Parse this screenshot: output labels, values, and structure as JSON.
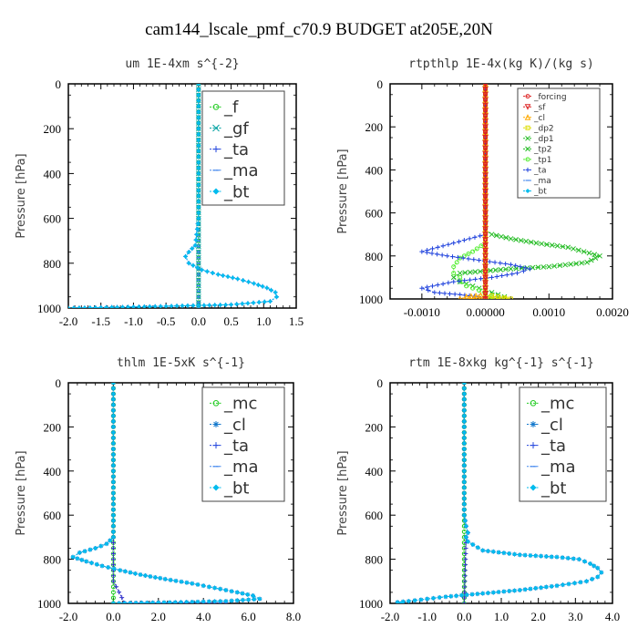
{
  "figure_title": "cam144_lscale_pmf_c70.9  BUDGET at205E,20N",
  "chart_data": [
    {
      "type": "line",
      "title": "um  1E-4xm s^{-2}",
      "ylabel": "Pressure [hPa]",
      "xlim": [
        -2.0,
        1.5
      ],
      "ylim": [
        1000,
        0
      ],
      "xticks": [
        -2.0,
        -1.5,
        -1.0,
        -0.5,
        0.0,
        0.5,
        1.0,
        1.5
      ],
      "xtick_labels": [
        "-2.0",
        "-1.5",
        "-1.0",
        "-0.5",
        "0.0",
        "0.5",
        "1.0",
        "1.5"
      ],
      "yticks": [
        0,
        200,
        400,
        600,
        800,
        1000
      ],
      "ytick_labels": [
        "0",
        "200",
        "400",
        "600",
        "800",
        "1000"
      ],
      "legend": [
        "_f",
        "_gf",
        "_ta",
        "_ma",
        "_bt"
      ],
      "series": [
        {
          "name": "_f",
          "color": "#22cc22",
          "marker": "circle",
          "x": [
            0,
            0,
            0,
            0,
            0,
            0,
            0,
            0,
            0,
            0,
            0
          ],
          "y": [
            0,
            100,
            200,
            300,
            400,
            500,
            600,
            700,
            800,
            900,
            1000
          ]
        },
        {
          "name": "_gf",
          "color": "#00a0a0",
          "marker": "x",
          "x": [
            0,
            0,
            0,
            0,
            0,
            0,
            0,
            0,
            0,
            0,
            0
          ],
          "y": [
            0,
            100,
            200,
            300,
            400,
            500,
            600,
            700,
            800,
            900,
            1000
          ]
        },
        {
          "name": "_ta",
          "color": "#2244dd",
          "marker": "plus",
          "x": [
            0,
            0,
            0,
            0,
            0,
            0,
            0,
            -0.05,
            -0.15,
            -0.2,
            -0.15,
            0.05,
            0.3,
            0.6,
            0.85,
            1.05,
            1.18,
            1.2,
            1.1,
            0.5,
            -1.0,
            -2.0
          ],
          "y": [
            0,
            100,
            200,
            300,
            400,
            500,
            600,
            720,
            750,
            770,
            800,
            830,
            850,
            870,
            890,
            910,
            930,
            950,
            970,
            985,
            995,
            1000
          ]
        },
        {
          "name": "_ma",
          "color": "#4488ee",
          "marker": "dash",
          "x": [
            0,
            0,
            0,
            0,
            0,
            0,
            0,
            0,
            0,
            0,
            0
          ],
          "y": [
            0,
            100,
            200,
            300,
            400,
            500,
            600,
            700,
            800,
            900,
            1000
          ]
        },
        {
          "name": "_bt",
          "color": "#00bbee",
          "marker": "diamond",
          "x": [
            0,
            0,
            0,
            0,
            0,
            0,
            0,
            -0.05,
            -0.15,
            -0.2,
            -0.15,
            0.05,
            0.3,
            0.6,
            0.85,
            1.05,
            1.18,
            1.2,
            1.1,
            0.5,
            -1.0,
            -2.0
          ],
          "y": [
            0,
            100,
            200,
            300,
            400,
            500,
            600,
            720,
            750,
            770,
            800,
            830,
            850,
            870,
            890,
            910,
            930,
            950,
            970,
            985,
            995,
            1000
          ]
        }
      ]
    },
    {
      "type": "line",
      "title": "rtpthlp  1E-4x(kg K)/(kg s)",
      "ylabel": "Pressure [hPa]",
      "xlim": [
        -0.0015,
        0.002
      ],
      "ylim": [
        1000,
        0
      ],
      "xticks": [
        -0.001,
        0.0,
        0.001,
        0.002
      ],
      "xtick_labels": [
        "-0.0010",
        "0.00000",
        "0.0010",
        "0.0020"
      ],
      "yticks": [
        0,
        200,
        400,
        600,
        800,
        1000
      ],
      "ytick_labels": [
        "0",
        "200",
        "400",
        "600",
        "800",
        "1000"
      ],
      "legend": [
        "_forcing",
        "_sf",
        "_cl",
        "_dp2",
        "_dp1",
        "_tp2",
        "_tp1",
        "_ta",
        "_ma",
        "_bt"
      ],
      "series": [
        {
          "name": "_tp2",
          "color": "#22bb22",
          "marker": "x",
          "x": [
            0,
            0,
            0,
            0.0001,
            0.0004,
            0.0008,
            0.0013,
            0.0018,
            0.0016,
            0.001,
            0.0004,
            0.0,
            -0.0004,
            -0.0005,
            -0.0004,
            -0.0002,
            0.0,
            0.0002,
            0.0003,
            0.0002,
            0.0
          ],
          "y": [
            0,
            300,
            680,
            700,
            720,
            740,
            760,
            800,
            830,
            850,
            860,
            870,
            880,
            900,
            920,
            940,
            960,
            980,
            990,
            995,
            1000
          ]
        },
        {
          "name": "_tp1",
          "color": "#55ee33",
          "marker": "circle",
          "x": [
            0,
            0,
            0,
            -0.0002,
            -0.0004,
            -0.0005,
            -0.0005,
            -0.0004,
            -0.0004,
            -0.0003,
            -0.0001,
            0.0,
            0.0001,
            0.0
          ],
          "y": [
            0,
            300,
            740,
            780,
            810,
            850,
            880,
            900,
            920,
            940,
            960,
            980,
            990,
            1000
          ]
        },
        {
          "name": "_ta",
          "color": "#2244dd",
          "marker": "plus",
          "x": [
            0,
            0,
            0,
            -0.0005,
            -0.001,
            -0.0006,
            -0.0001,
            0.0004,
            0.0007,
            0.0005,
            0.0001,
            -0.0005,
            -0.001,
            -0.0008,
            -0.0004,
            -0.0001,
            0.0
          ],
          "y": [
            0,
            300,
            700,
            740,
            780,
            800,
            820,
            840,
            860,
            880,
            900,
            920,
            950,
            970,
            980,
            990,
            1000
          ]
        },
        {
          "name": "_cl",
          "color": "#ffaa00",
          "marker": "triangle",
          "x": [
            0,
            0,
            0,
            -0.0003,
            -0.0004,
            0.0
          ],
          "y": [
            0,
            500,
            980,
            990,
            1000,
            1000
          ]
        },
        {
          "name": "_dp2",
          "color": "#dddd00",
          "marker": "square",
          "x": [
            0,
            0,
            0,
            0.0002,
            0.0004,
            0.0
          ],
          "y": [
            0,
            500,
            980,
            990,
            1000,
            1000
          ]
        },
        {
          "name": "_forcing",
          "color": "#dd2222",
          "marker": "circle",
          "x": [
            0,
            0,
            0,
            0,
            0,
            0,
            0,
            0,
            0,
            0,
            0
          ],
          "y": [
            0,
            100,
            200,
            300,
            400,
            500,
            600,
            700,
            800,
            900,
            1000
          ]
        },
        {
          "name": "_sf",
          "color": "#dd2222",
          "marker": "triangle-down",
          "x": [
            0,
            0,
            0,
            0,
            0,
            0,
            0,
            0,
            0,
            0,
            0
          ],
          "y": [
            0,
            100,
            200,
            300,
            400,
            500,
            600,
            700,
            800,
            900,
            1000
          ]
        }
      ]
    },
    {
      "type": "line",
      "title": "thlm  1E-5xK s^{-1}",
      "ylabel": "Pressure [hPa]",
      "xlim": [
        -2.0,
        8.0
      ],
      "ylim": [
        1000,
        0
      ],
      "xticks": [
        -2.0,
        0.0,
        2.0,
        4.0,
        6.0,
        8.0
      ],
      "xtick_labels": [
        "-2.0",
        "0.0",
        "2.0",
        "4.0",
        "6.0",
        "8.0"
      ],
      "yticks": [
        0,
        200,
        400,
        600,
        800,
        1000
      ],
      "ytick_labels": [
        "0",
        "200",
        "400",
        "600",
        "800",
        "1000"
      ],
      "legend": [
        "_mc",
        "_cl",
        "_ta",
        "_ma",
        "_bt"
      ],
      "series": [
        {
          "name": "_mc",
          "color": "#22cc22",
          "marker": "circle",
          "x": [
            0,
            0,
            0,
            0,
            0,
            0,
            0,
            0,
            0,
            0,
            0
          ],
          "y": [
            0,
            100,
            200,
            300,
            400,
            500,
            600,
            700,
            800,
            900,
            1000
          ]
        },
        {
          "name": "_cl",
          "color": "#1177cc",
          "marker": "star",
          "x": [
            0,
            0,
            0,
            0,
            0,
            -0.3,
            -0.8,
            -1.5,
            -1.8,
            -1.2,
            -0.5,
            0.3,
            1.2,
            2.3,
            3.5,
            4.5,
            5.5,
            6.2,
            6.5,
            5.0,
            3.0,
            1.0,
            0.0
          ],
          "y": [
            0,
            200,
            400,
            600,
            700,
            730,
            750,
            770,
            790,
            810,
            830,
            850,
            870,
            890,
            910,
            930,
            950,
            965,
            980,
            990,
            995,
            998,
            1000
          ]
        },
        {
          "name": "_ta",
          "color": "#3333cc",
          "marker": "plus",
          "x": [
            0,
            0,
            0,
            0,
            0,
            0.5,
            1.0,
            2.0,
            3.0,
            4.0,
            5.0
          ],
          "y": [
            0,
            200,
            400,
            600,
            900,
            998,
            999,
            1000,
            1000,
            1000,
            1000
          ]
        },
        {
          "name": "_bt",
          "color": "#00bbee",
          "marker": "diamond",
          "x": [
            0,
            0,
            0,
            0,
            0,
            -0.3,
            -0.8,
            -1.5,
            -1.8,
            -1.2,
            -0.5,
            0.3,
            1.2,
            2.3,
            3.5,
            4.5,
            5.5,
            6.2,
            6.5,
            5.0,
            3.0,
            1.0,
            0.0
          ],
          "y": [
            0,
            200,
            400,
            600,
            700,
            730,
            750,
            770,
            790,
            810,
            830,
            850,
            870,
            890,
            910,
            930,
            950,
            965,
            980,
            990,
            995,
            998,
            1000
          ]
        }
      ]
    },
    {
      "type": "line",
      "title": "rtm  1E-8xkg kg^{-1} s^{-1}",
      "ylabel": "Pressure [hPa]",
      "xlim": [
        -2.0,
        4.0
      ],
      "ylim": [
        1000,
        0
      ],
      "xticks": [
        -2.0,
        -1.0,
        0.0,
        1.0,
        2.0,
        3.0,
        4.0
      ],
      "xtick_labels": [
        "-2.0",
        "-1.0",
        "0.0",
        "1.0",
        "2.0",
        "3.0",
        "4.0"
      ],
      "yticks": [
        0,
        200,
        400,
        600,
        800,
        1000
      ],
      "ytick_labels": [
        "0",
        "200",
        "400",
        "600",
        "800",
        "1000"
      ],
      "legend": [
        "_mc",
        "_cl",
        "_ta",
        "_ma",
        "_bt"
      ],
      "series": [
        {
          "name": "_mc",
          "color": "#22cc22",
          "marker": "circle",
          "x": [
            0,
            0,
            0,
            0,
            0,
            0,
            0,
            0,
            0,
            0,
            0
          ],
          "y": [
            0,
            100,
            200,
            300,
            400,
            500,
            600,
            700,
            800,
            900,
            1000
          ]
        },
        {
          "name": "_cl",
          "color": "#1177cc",
          "marker": "star",
          "x": [
            0,
            0,
            0,
            0,
            0.05,
            0.1,
            0.05,
            0.1,
            0.5,
            1.5,
            2.5,
            3.1,
            3.4,
            3.6,
            3.7,
            3.6,
            3.3,
            2.5,
            1.5,
            0.5,
            -0.5,
            -1.0,
            -1.5,
            -1.8,
            -1.7
          ],
          "y": [
            0,
            200,
            400,
            600,
            650,
            680,
            700,
            720,
            760,
            780,
            790,
            800,
            820,
            840,
            860,
            880,
            900,
            920,
            940,
            955,
            970,
            980,
            990,
            995,
            1000
          ]
        },
        {
          "name": "_ta",
          "color": "#3333cc",
          "marker": "plus",
          "x": [
            0,
            0,
            0,
            0,
            0.05,
            0.1,
            0.05,
            0.0
          ],
          "y": [
            0,
            200,
            400,
            600,
            650,
            680,
            700,
            1000
          ]
        },
        {
          "name": "_bt",
          "color": "#00bbee",
          "marker": "diamond",
          "x": [
            0,
            0,
            0,
            0,
            0.05,
            0.1,
            0.05,
            0.1,
            0.5,
            1.5,
            2.5,
            3.1,
            3.4,
            3.6,
            3.7,
            3.6,
            3.3,
            2.5,
            1.5,
            0.5,
            -0.5,
            -1.0,
            -1.5,
            -1.8,
            -1.7
          ],
          "y": [
            0,
            200,
            400,
            600,
            650,
            680,
            700,
            720,
            760,
            780,
            790,
            800,
            820,
            840,
            860,
            880,
            900,
            920,
            940,
            955,
            970,
            980,
            990,
            995,
            1000
          ]
        }
      ]
    }
  ]
}
